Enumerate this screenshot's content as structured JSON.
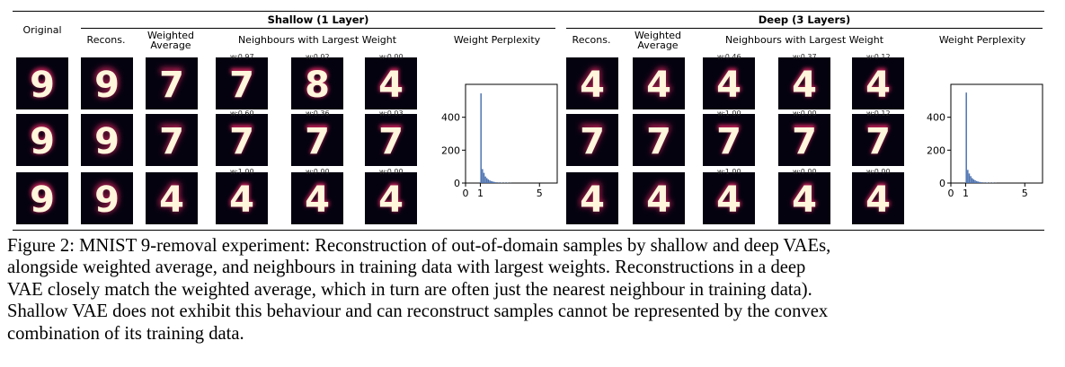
{
  "figure": {
    "col_original": "Original",
    "shallow": {
      "title": "Shallow (1 Layer)",
      "recons": "Recons.",
      "weighted_l1": "Weighted",
      "weighted_l2": "Average",
      "neighbours": "Neighbours with Largest Weight",
      "perplexity": "Weight Perplexity",
      "weights": [
        [
          "w:0.97",
          "w:0.02",
          "w:0.00"
        ],
        [
          "w:0.60",
          "w:0.36",
          "w:0.03"
        ],
        [
          "w:1.00",
          "w:0.00",
          "w:0.00"
        ]
      ],
      "rows": [
        {
          "original": "9",
          "recons": "9",
          "weighted": "7",
          "neighbours": [
            "7",
            "8",
            "4"
          ]
        },
        {
          "original": "9",
          "recons": "9",
          "weighted": "7",
          "neighbours": [
            "7",
            "7",
            "7"
          ]
        },
        {
          "original": "9",
          "recons": "9",
          "weighted": "4",
          "neighbours": [
            "4",
            "4",
            "4"
          ]
        }
      ]
    },
    "deep": {
      "title": "Deep (3 Layers)",
      "recons": "Recons.",
      "weighted_l1": "Weighted",
      "weighted_l2": "Average",
      "neighbours": "Neighbours with Largest Weight",
      "perplexity": "Weight Perplexity",
      "weights": [
        [
          "w:0.46",
          "w:0.37",
          "w:0.12"
        ],
        [
          "w:1.00",
          "w:0.00",
          "w:0.12"
        ],
        [
          "w:1.00",
          "w:0.00",
          "w:0.00"
        ]
      ],
      "rows": [
        {
          "recons": "4",
          "weighted": "4",
          "neighbours": [
            "4",
            "4",
            "4"
          ]
        },
        {
          "recons": "7",
          "weighted": "7",
          "neighbours": [
            "7",
            "7",
            "7"
          ]
        },
        {
          "recons": "4",
          "weighted": "4",
          "neighbours": [
            "4",
            "4",
            "4"
          ]
        }
      ]
    }
  },
  "chart_data": [
    {
      "type": "bar",
      "title": "Weight Perplexity",
      "xlabel": "",
      "ylabel": "",
      "xlim": [
        0,
        6.2
      ],
      "ylim": [
        0,
        600
      ],
      "xticks": [
        "0",
        "1",
        "5"
      ],
      "yticks": [
        "0",
        "200",
        "400"
      ],
      "bins": [
        1.0,
        1.1,
        1.2,
        1.3,
        1.4,
        1.5,
        1.6,
        1.7,
        1.8,
        1.9,
        2.0,
        2.2,
        2.4,
        2.6,
        2.8,
        3.0
      ],
      "values": [
        545,
        85,
        62,
        40,
        30,
        22,
        16,
        12,
        9,
        7,
        5,
        4,
        3,
        2,
        2,
        1
      ],
      "color": "#4c72b0"
    },
    {
      "type": "bar",
      "title": "Weight Perplexity",
      "xlabel": "",
      "ylabel": "",
      "xlim": [
        0,
        6.2
      ],
      "ylim": [
        0,
        600
      ],
      "xticks": [
        "0",
        "1",
        "5"
      ],
      "yticks": [
        "0",
        "200",
        "400"
      ],
      "bins": [
        1.0,
        1.1,
        1.2,
        1.3,
        1.4,
        1.5,
        1.6,
        1.7,
        1.8,
        1.9,
        2.0,
        2.2,
        2.4,
        2.6,
        2.8,
        3.0
      ],
      "values": [
        550,
        80,
        58,
        42,
        30,
        22,
        17,
        12,
        9,
        7,
        5,
        4,
        3,
        2,
        2,
        1
      ],
      "color": "#4c72b0"
    }
  ],
  "caption": {
    "lines": [
      "Figure 2:  MNIST 9-removal experiment: Reconstruction of out-of-domain samples by shallow and deep VAEs,",
      "alongside weighted average, and neighbours in training data with largest weights.  Reconstructions in a deep",
      "VAE closely match the weighted average, which in turn are often just the nearest neighbour in training data).",
      "Shallow VAE does not exhibit this behaviour and can reconstruct samples cannot be represented by the convex",
      "combination of its training data."
    ]
  }
}
